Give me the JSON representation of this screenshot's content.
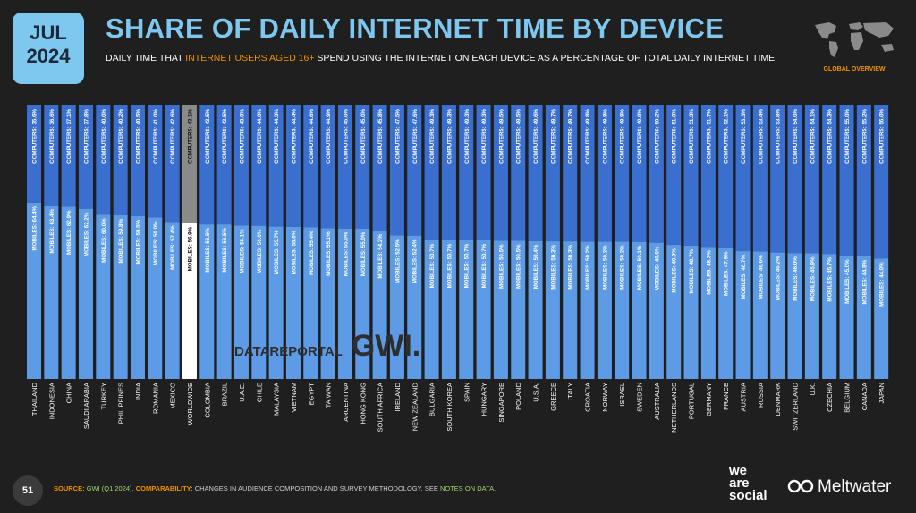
{
  "header": {
    "month": "JUL",
    "year": "2024",
    "title": "SHARE OF DAILY INTERNET TIME BY DEVICE",
    "subtitle_pre": "DAILY TIME THAT ",
    "subtitle_highlight": "INTERNET USERS AGED 16+",
    "subtitle_post": " SPEND USING THE INTERNET ON EACH DEVICE AS A PERCENTAGE OF TOTAL DAILY INTERNET TIME",
    "map_label": "GLOBAL OVERVIEW"
  },
  "watermark": {
    "left": "DATAREPORTAL",
    "right": "GWI."
  },
  "footer": {
    "page_number": "51",
    "source_label": "SOURCE:",
    "source_text": "GWI (Q1 2024).",
    "comparability_label": "COMPARABILITY:",
    "comparability_text": "CHANGES IN AUDIENCE COMPOSITION AND SURVEY METHODOLOGY. SEE",
    "notes_link": "NOTES ON DATA."
  },
  "branding": {
    "we_are_social": [
      "we",
      "are",
      "social"
    ],
    "meltwater": "Meltwater"
  },
  "colors": {
    "background": "#1f1f1f",
    "mobiles": "#5e9be6",
    "computers": "#3a6fd0",
    "worldwide_mobiles": "#ffffff",
    "worldwide_computers": "#8a8a8a",
    "accent": "#7ec8f0",
    "highlight": "#f39200"
  },
  "chart_data": {
    "type": "bar",
    "stacked": true,
    "orientation": "vertical",
    "ylim": [
      0,
      100
    ],
    "categories": [
      "THAILAND",
      "INDONESIA",
      "CHINA",
      "SAUDI ARABIA",
      "TURKEY",
      "PHILIPPINES",
      "INDIA",
      "ROMANIA",
      "MEXICO",
      "WORLDWIDE",
      "COLOMBIA",
      "BRAZIL",
      "U.A.E.",
      "CHILE",
      "MALAYSIA",
      "VIETNAM",
      "EGYPT",
      "TAIWAN",
      "ARGENTINA",
      "HONG KONG",
      "SOUTH AFRICA",
      "IRELAND",
      "NEW ZEALAND",
      "BULGARIA",
      "SOUTH KOREA",
      "SPAIN",
      "HUNGARY",
      "SINGAPORE",
      "POLAND",
      "U.S.A.",
      "GREECE",
      "ITALY",
      "CROATIA",
      "NORWAY",
      "ISRAEL",
      "SWEDEN",
      "AUSTRALIA",
      "NETHERLANDS",
      "PORTUGAL",
      "GERMANY",
      "FRANCE",
      "AUSTRIA",
      "RUSSIA",
      "DENMARK",
      "SWITZERLAND",
      "U.K.",
      "CZECHIA",
      "BELGIUM",
      "CANADA",
      "JAPAN"
    ],
    "series": [
      {
        "name": "MOBILES",
        "label_prefix": "MOBILES: ",
        "values": [
          64.4,
          63.4,
          62.9,
          62.2,
          60.0,
          59.8,
          59.5,
          59.0,
          57.4,
          56.9,
          56.5,
          56.5,
          56.1,
          56.0,
          55.7,
          55.6,
          55.4,
          55.1,
          55.0,
          55.0,
          54.2,
          52.5,
          52.4,
          50.7,
          50.7,
          50.7,
          50.7,
          50.5,
          50.5,
          50.4,
          50.3,
          50.3,
          50.2,
          50.2,
          50.2,
          50.1,
          49.8,
          49.0,
          48.7,
          48.3,
          47.9,
          46.7,
          46.6,
          46.2,
          46.0,
          45.9,
          45.7,
          45.0,
          44.8,
          44.0
        ],
        "labels": [
          "64.4%",
          "63.4%",
          "62.9%",
          "62.2%",
          "60.0%",
          "59.8%",
          "59.5%",
          "59.0%",
          "57.4%",
          "56.9%",
          "56.5%",
          "56.5%",
          "56.1%",
          "56.0%",
          "55.7%",
          "55.6%",
          "55.4%",
          "55.1%",
          "55.0%",
          "55.0%",
          "54.2%",
          "52.5%",
          "52.4%",
          "50.7%",
          "50.7%",
          "50.7%",
          "50.7%",
          "50.5%",
          "50.5%",
          "50.4%",
          "50.3%",
          "50.3%",
          "50.2%",
          "50.2%",
          "50.2%",
          "50.1%",
          "49.8%",
          "49.0%",
          "48.7%",
          "48.3%",
          "47.9%",
          "46.7%",
          "46.6%",
          "46.2%",
          "46.0%",
          "45.9%",
          "45.7%",
          "45.0%",
          "44.8%",
          "44.0%"
        ]
      },
      {
        "name": "COMPUTERS",
        "label_prefix": "COMPUTERS: ",
        "values": [
          35.6,
          36.6,
          37.1,
          37.8,
          40.0,
          40.2,
          40.5,
          41.0,
          42.6,
          43.1,
          43.5,
          43.5,
          43.9,
          44.0,
          44.3,
          44.4,
          44.6,
          44.9,
          45.0,
          45.0,
          45.8,
          47.5,
          47.6,
          49.3,
          49.3,
          49.3,
          49.3,
          49.5,
          49.5,
          49.6,
          49.7,
          49.7,
          49.8,
          49.8,
          49.8,
          49.9,
          50.2,
          51.0,
          51.3,
          51.7,
          52.1,
          53.3,
          53.4,
          53.8,
          54.0,
          54.1,
          54.3,
          55.0,
          55.2,
          56.0
        ],
        "labels": [
          "35.6%",
          "36.6%",
          "37.1%",
          "37.8%",
          "40.0%",
          "40.2%",
          "40.5%",
          "41.0%",
          "42.6%",
          "43.1%",
          "43.5%",
          "43.5%",
          "43.9%",
          "44.0%",
          "44.3%",
          "44.4%",
          "44.6%",
          "44.9%",
          "45.0%",
          "45.0%",
          "45.8%",
          "47.5%",
          "47.6%",
          "49.3%",
          "49.3%",
          "49.3%",
          "49.3%",
          "49.5%",
          "49.5%",
          "49.6%",
          "49.7%",
          "49.7%",
          "49.8%",
          "49.8%",
          "49.8%",
          "49.9%",
          "50.2%",
          "51.0%",
          "51.3%",
          "51.7%",
          "52.1%",
          "53.3%",
          "53.4%",
          "53.8%",
          "54.0%",
          "54.1%",
          "54.3%",
          "55.0%",
          "55.2%",
          "56.0%"
        ]
      }
    ],
    "highlight_category": "WORLDWIDE"
  }
}
